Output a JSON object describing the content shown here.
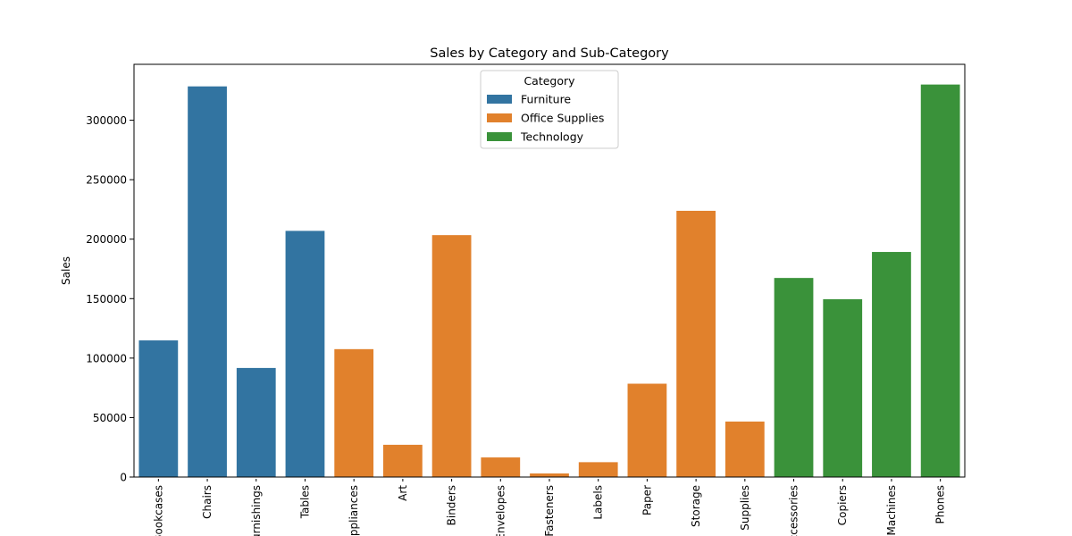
{
  "chart_data": {
    "type": "bar",
    "title": "Sales by Category and Sub-Category",
    "xlabel": "",
    "ylabel": "Sales",
    "ylim": [
      0,
      347000
    ],
    "yticks": [
      0,
      50000,
      100000,
      150000,
      200000,
      250000,
      300000
    ],
    "grid": false,
    "legend": {
      "title": "Category",
      "placement": "upper-center",
      "entries": [
        {
          "name": "Furniture",
          "color": "#3274a1"
        },
        {
          "name": "Office Supplies",
          "color": "#e1812c"
        },
        {
          "name": "Technology",
          "color": "#3a923a"
        }
      ]
    },
    "categories": [
      "Bookcases",
      "Chairs",
      "Furnishings",
      "Tables",
      "Appliances",
      "Art",
      "Binders",
      "Envelopes",
      "Fasteners",
      "Labels",
      "Paper",
      "Storage",
      "Supplies",
      "Accessories",
      "Copiers",
      "Machines",
      "Phones"
    ],
    "bar_category": [
      "Furniture",
      "Furniture",
      "Furniture",
      "Furniture",
      "Office Supplies",
      "Office Supplies",
      "Office Supplies",
      "Office Supplies",
      "Office Supplies",
      "Office Supplies",
      "Office Supplies",
      "Office Supplies",
      "Office Supplies",
      "Technology",
      "Technology",
      "Technology",
      "Technology"
    ],
    "values": [
      114880,
      328449,
      91705,
      206966,
      107532,
      27119,
      203413,
      16476,
      3024,
      12486,
      78479,
      223844,
      46674,
      167380,
      149528,
      189239,
      330007
    ]
  }
}
